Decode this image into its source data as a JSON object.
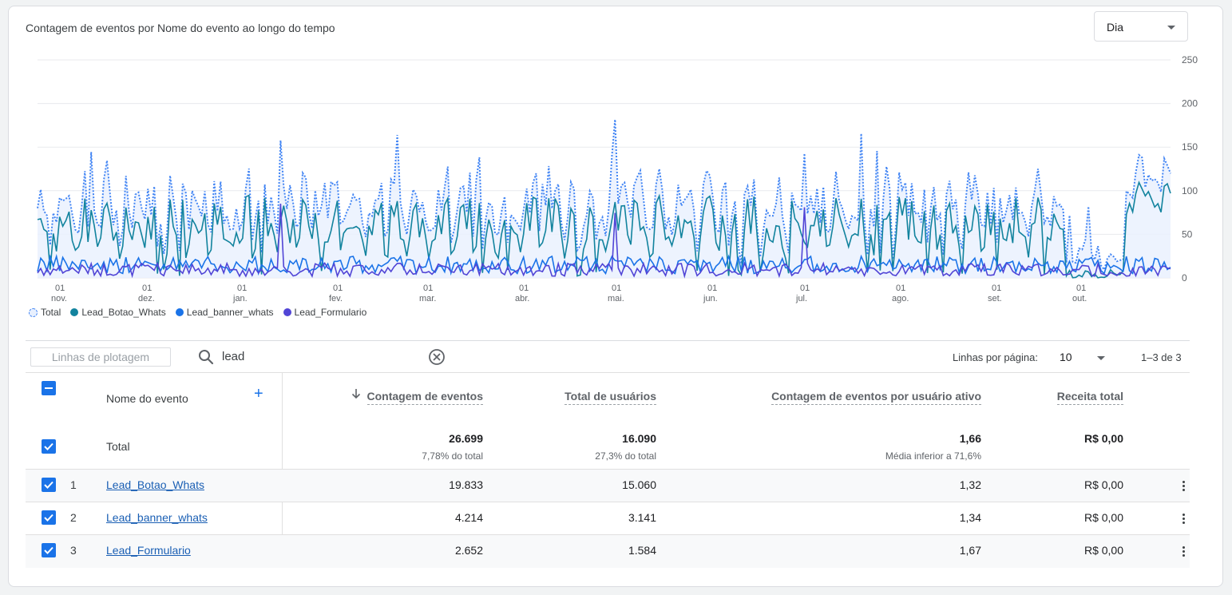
{
  "card": {
    "title": "Contagem de eventos por Nome do evento ao longo do tempo"
  },
  "granularity": {
    "value": "Dia"
  },
  "chart_data": {
    "type": "line",
    "y_ticks": [
      "250",
      "200",
      "150",
      "100",
      "50",
      "0"
    ],
    "ylim": [
      0,
      250
    ],
    "x_ticks": [
      {
        "day": "01",
        "month": "nov."
      },
      {
        "day": "01",
        "month": "dez."
      },
      {
        "day": "01",
        "month": "jan."
      },
      {
        "day": "01",
        "month": "fev."
      },
      {
        "day": "01",
        "month": "mar."
      },
      {
        "day": "01",
        "month": "abr."
      },
      {
        "day": "01",
        "month": "mai."
      },
      {
        "day": "01",
        "month": "jun."
      },
      {
        "day": "01",
        "month": "jul."
      },
      {
        "day": "01",
        "month": "ago."
      },
      {
        "day": "01",
        "month": "set."
      },
      {
        "day": "01",
        "month": "out."
      }
    ],
    "series": [
      {
        "name": "Total",
        "color": "#4285f4",
        "style": "dotted-area",
        "approx_mean": 73,
        "approx_max": 183
      },
      {
        "name": "Lead_Botao_Whats",
        "color": "#12839e",
        "style": "solid",
        "approx_mean": 54,
        "approx_max": 125
      },
      {
        "name": "Lead_banner_whats",
        "color": "#1a73e8",
        "style": "solid",
        "approx_mean": 12,
        "approx_max": 35
      },
      {
        "name": "Lead_Formulario",
        "color": "#5145d6",
        "style": "solid",
        "approx_mean": 8,
        "approx_max": 125
      }
    ],
    "grid": true
  },
  "legend": {
    "items": [
      {
        "label": "Total",
        "color": "#4285f4"
      },
      {
        "label": "Lead_Botao_Whats",
        "color": "#12839e"
      },
      {
        "label": "Lead_banner_whats",
        "color": "#1a73e8"
      },
      {
        "label": "Lead_Formulario",
        "color": "#5145d6"
      }
    ]
  },
  "toolbar": {
    "plot_rows_label": "Linhas de plotagem",
    "search_value": "lead",
    "rows_per_page_label": "Linhas por página:",
    "rows_per_page_value": "10",
    "range_label": "1–3 de 3"
  },
  "table": {
    "headers": {
      "name": "Nome do evento",
      "count": "Contagem de eventos",
      "users": "Total de usuários",
      "per_user": "Contagem de eventos por usuário ativo",
      "revenue": "Receita total"
    },
    "totals": {
      "label": "Total",
      "count": "26.699",
      "count_sub": "7,78% do total",
      "users": "16.090",
      "users_sub": "27,3% do total",
      "per_user": "1,66",
      "per_user_sub": "Média inferior a 71,6%",
      "revenue": "R$ 0,00"
    },
    "rows": [
      {
        "idx": "1",
        "name": "Lead_Botao_Whats",
        "count": "19.833",
        "users": "15.060",
        "per_user": "1,32",
        "revenue": "R$ 0,00"
      },
      {
        "idx": "2",
        "name": "Lead_banner_whats",
        "count": "4.214",
        "users": "3.141",
        "per_user": "1,34",
        "revenue": "R$ 0,00"
      },
      {
        "idx": "3",
        "name": "Lead_Formulario",
        "count": "2.652",
        "users": "1.584",
        "per_user": "1,67",
        "revenue": "R$ 0,00"
      }
    ]
  }
}
